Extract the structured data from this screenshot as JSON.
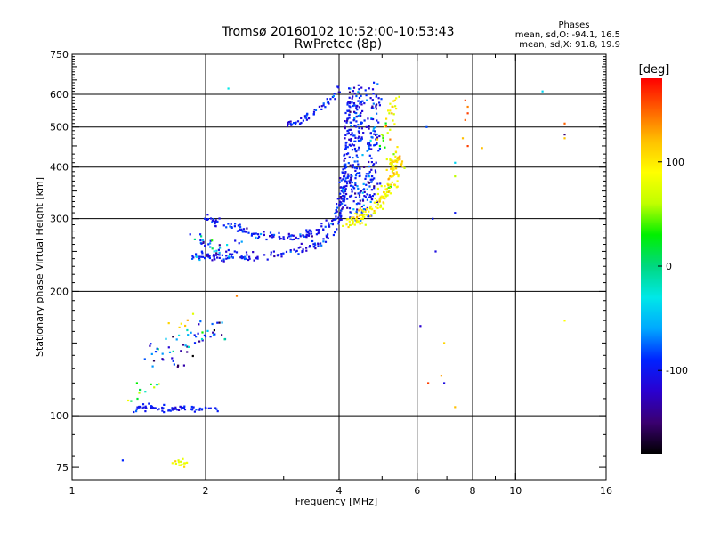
{
  "title": {
    "line1": "Tromsø 20160102 10:52:00-10:53:43",
    "line2": "RwPretec (8p)"
  },
  "phases": {
    "heading": "Phases",
    "o_line": "mean, sd,O: -94.1, 16.5",
    "x_line": "mean, sd,X:  91.8, 19.9"
  },
  "chart_data": {
    "type": "scatter",
    "xlabel": "Frequency [MHz]",
    "ylabel": "Stationary phase Virtual Height [km]",
    "xscale": "log",
    "yscale": "log",
    "xlim": [
      1,
      16
    ],
    "ylim": [
      70,
      750
    ],
    "xticks": [
      1,
      2,
      4,
      6,
      8,
      10,
      16
    ],
    "xticks_minor": [
      3,
      5,
      7,
      9
    ],
    "yticks": [
      75,
      100,
      200,
      300,
      400,
      500,
      600,
      750
    ],
    "gridlines_x": [
      2,
      4,
      6,
      8,
      10
    ],
    "gridlines_y": [
      100,
      200,
      300,
      400,
      500,
      600
    ],
    "grid": true,
    "colorbar": {
      "label": "[deg]",
      "range": [
        -180,
        180
      ],
      "ticks": [
        -100,
        0,
        100
      ],
      "position": "right",
      "colormap": [
        "#000000",
        "#3a0070",
        "#2a00d0",
        "#0022ff",
        "#00a8ff",
        "#00e8e8",
        "#00d880",
        "#00f000",
        "#c0ff00",
        "#ffff00",
        "#ffc000",
        "#ff6000",
        "#ff0000"
      ]
    },
    "groups": [
      {
        "name": "",
        "curve": [
          [
            1.38,
            104
          ],
          [
            1.5,
            105
          ],
          [
            1.7,
            104
          ],
          [
            1.9,
            104
          ],
          [
            2.15,
            104
          ]
        ],
        "spread": 0.008,
        "n": 70,
        "phase": -100,
        "phase_sd": 14
      },
      {
        "name": "",
        "curve": [
          [
            1.45,
            140
          ],
          [
            1.6,
            145
          ],
          [
            1.7,
            135
          ],
          [
            1.8,
            150
          ],
          [
            2.0,
            160
          ],
          [
            2.1,
            165
          ],
          [
            2.2,
            160
          ]
        ],
        "spread": 0.035,
        "n": 60,
        "phase": -80,
        "phase_sd": 45
      },
      {
        "name": "",
        "curve": [
          [
            1.35,
            110
          ],
          [
            1.45,
            115
          ],
          [
            1.55,
            120
          ]
        ],
        "spread": 0.02,
        "n": 10,
        "phase": 20,
        "phase_sd": 60
      },
      {
        "name": "",
        "curve": [
          [
            1.85,
            245
          ],
          [
            2.2,
            242
          ],
          [
            2.6,
            243
          ],
          [
            3.0,
            248
          ],
          [
            3.4,
            255
          ],
          [
            3.7,
            265
          ],
          [
            3.95,
            285
          ],
          [
            4.05,
            310
          ],
          [
            4.1,
            350
          ],
          [
            4.15,
            420
          ],
          [
            4.2,
            520
          ],
          [
            4.25,
            620
          ]
        ],
        "spread": 0.012,
        "n": 240,
        "phase": -100,
        "phase_sd": 16
      },
      {
        "name": "",
        "curve": [
          [
            2.0,
            300
          ],
          [
            2.3,
            285
          ],
          [
            2.6,
            275
          ],
          [
            3.0,
            270
          ],
          [
            3.4,
            275
          ],
          [
            3.7,
            285
          ],
          [
            3.9,
            300
          ],
          [
            4.05,
            330
          ],
          [
            4.2,
            380
          ]
        ],
        "spread": 0.012,
        "n": 170,
        "phase": -100,
        "phase_sd": 16
      },
      {
        "name": "",
        "curve": [
          [
            1.9,
            260
          ],
          [
            2.1,
            255
          ],
          [
            2.3,
            250
          ]
        ],
        "spread": 0.03,
        "n": 40,
        "phase": -70,
        "phase_sd": 40
      },
      {
        "name": "",
        "curve": [
          [
            3.0,
            505
          ],
          [
            3.3,
            520
          ],
          [
            3.6,
            550
          ],
          [
            3.9,
            590
          ],
          [
            4.05,
            630
          ]
        ],
        "spread": 0.01,
        "n": 50,
        "phase": -100,
        "phase_sd": 15
      },
      {
        "name": "",
        "curve": [
          [
            4.3,
            300
          ],
          [
            4.35,
            400
          ],
          [
            4.4,
            500
          ],
          [
            4.45,
            630
          ]
        ],
        "spread": 0.018,
        "n": 140,
        "phase": -95,
        "phase_sd": 18
      },
      {
        "name": "",
        "curve": [
          [
            4.6,
            300
          ],
          [
            4.7,
            400
          ],
          [
            4.75,
            500
          ],
          [
            4.8,
            620
          ]
        ],
        "spread": 0.02,
        "n": 140,
        "phase": -95,
        "phase_sd": 20
      },
      {
        "name": "",
        "curve": [
          [
            4.2,
            290
          ],
          [
            4.5,
            300
          ],
          [
            4.8,
            320
          ],
          [
            5.1,
            340
          ],
          [
            5.3,
            380
          ],
          [
            5.35,
            430
          ]
        ],
        "spread": 0.02,
        "n": 170,
        "phase": 92,
        "phase_sd": 18
      },
      {
        "name": "",
        "curve": [
          [
            4.9,
            450
          ],
          [
            5.05,
            480
          ],
          [
            5.2,
            520
          ],
          [
            5.35,
            580
          ]
        ],
        "spread": 0.02,
        "n": 30,
        "phase": 90,
        "phase_sd": 30
      },
      {
        "name": "",
        "curve": [
          [
            1.7,
            77
          ],
          [
            1.8,
            77
          ]
        ],
        "spread": 0.01,
        "n": 14,
        "phase": 90,
        "phase_sd": 15
      },
      {
        "name": "",
        "curve": [
          [
            1.7,
            165
          ],
          [
            1.85,
            170
          ]
        ],
        "spread": 0.02,
        "n": 6,
        "phase": 100,
        "phase_sd": 30
      }
    ],
    "points": [
      [
        2.25,
        620,
        -30
      ],
      [
        6.3,
        500,
        -80
      ],
      [
        6.6,
        250,
        -110
      ],
      [
        6.5,
        300,
        -100
      ],
      [
        7.3,
        310,
        -100
      ],
      [
        7.3,
        410,
        -40
      ],
      [
        7.6,
        470,
        120
      ],
      [
        7.7,
        520,
        150
      ],
      [
        7.8,
        540,
        160
      ],
      [
        7.7,
        580,
        160
      ],
      [
        7.8,
        560,
        140
      ],
      [
        8.4,
        445,
        120
      ],
      [
        7.8,
        450,
        160
      ],
      [
        7.3,
        380,
        60
      ],
      [
        6.1,
        165,
        -120
      ],
      [
        6.35,
        120,
        160
      ],
      [
        6.9,
        120,
        -110
      ],
      [
        6.8,
        125,
        130
      ],
      [
        7.3,
        105,
        120
      ],
      [
        6.9,
        150,
        110
      ],
      [
        11.5,
        610,
        -40
      ],
      [
        12.9,
        510,
        150
      ],
      [
        12.9,
        480,
        -150
      ],
      [
        12.9,
        470,
        120
      ],
      [
        12.9,
        170,
        90
      ],
      [
        2.35,
        195,
        140
      ],
      [
        1.4,
        120,
        30
      ],
      [
        1.3,
        78,
        -90
      ]
    ]
  }
}
